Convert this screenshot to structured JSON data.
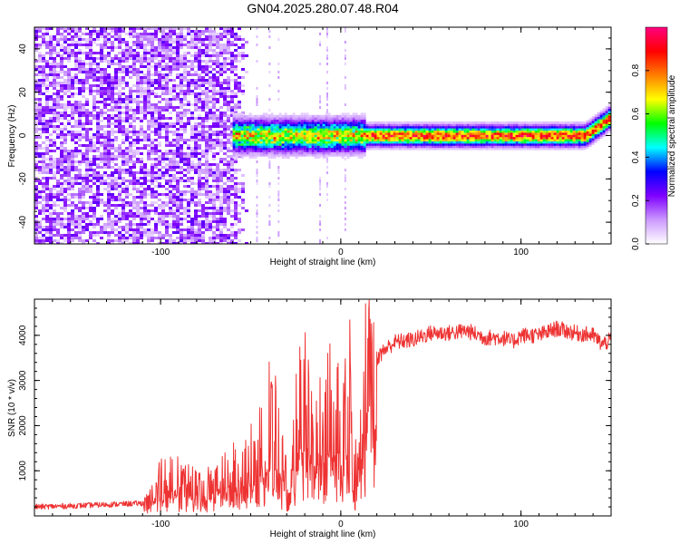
{
  "title": "GN04.2025.280.07.48.R04",
  "chart_data": [
    {
      "type": "heatmap",
      "name": "spectrogram",
      "xlabel": "Height of straight line (km)",
      "ylabel": "Frequency (Hz)",
      "xlim": [
        -170,
        150
      ],
      "ylim": [
        -50,
        50
      ],
      "xticks": [
        -100,
        0,
        100
      ],
      "yticks": [
        -40,
        -20,
        0,
        20,
        40
      ],
      "colorbar": {
        "label": "Normalized spectral amplitude",
        "range": [
          0,
          1
        ],
        "ticks": [
          0.0,
          0.2,
          0.4,
          0.6,
          0.8
        ],
        "colors": [
          "#ffffff",
          "#cc99ff",
          "#7f00ff",
          "#0000ff",
          "#00ffff",
          "#00ff00",
          "#ffff00",
          "#ff7f00",
          "#ff0000",
          "#ff0080"
        ]
      },
      "regions": [
        {
          "label": "noise",
          "x": [
            -170,
            -60
          ],
          "freq": [
            -50,
            50
          ],
          "amplitude": 0.15
        },
        {
          "label": "band",
          "x": [
            -60,
            150
          ],
          "freq_center": 0,
          "half_width_hz": 5,
          "amplitude": 0.9
        }
      ]
    },
    {
      "type": "line",
      "name": "snr",
      "xlabel": "Height of straight line (km)",
      "ylabel": "SNR (10 * v/v)",
      "xlim": [
        -170,
        150
      ],
      "ylim": [
        0,
        4800
      ],
      "xticks": [
        -100,
        0,
        100
      ],
      "yticks": [
        1000,
        2000,
        3000,
        4000
      ],
      "color": "#ee3333",
      "series": [
        {
          "name": "SNR envelope",
          "x": [
            -170,
            -150,
            -130,
            -110,
            -105,
            -100,
            -95,
            -90,
            -80,
            -70,
            -60,
            -55,
            -50,
            -45,
            -40,
            -35,
            -30,
            -28,
            -25,
            -20,
            -15,
            -10,
            -5,
            0,
            5,
            8,
            10,
            15,
            20,
            25,
            30,
            40,
            50,
            60,
            70,
            80,
            90,
            95,
            100,
            110,
            120,
            130,
            140,
            145,
            150
          ],
          "values": [
            200,
            220,
            250,
            280,
            600,
            900,
            1000,
            850,
            700,
            750,
            1050,
            1100,
            1300,
            1600,
            2300,
            1900,
            800,
            400,
            2100,
            2900,
            1800,
            2300,
            2800,
            2400,
            2900,
            1000,
            2700,
            3200,
            3500,
            3700,
            3850,
            3900,
            4050,
            4050,
            4100,
            3950,
            3950,
            3850,
            4000,
            4000,
            4150,
            4050,
            4000,
            3800,
            3900
          ]
        }
      ]
    }
  ]
}
